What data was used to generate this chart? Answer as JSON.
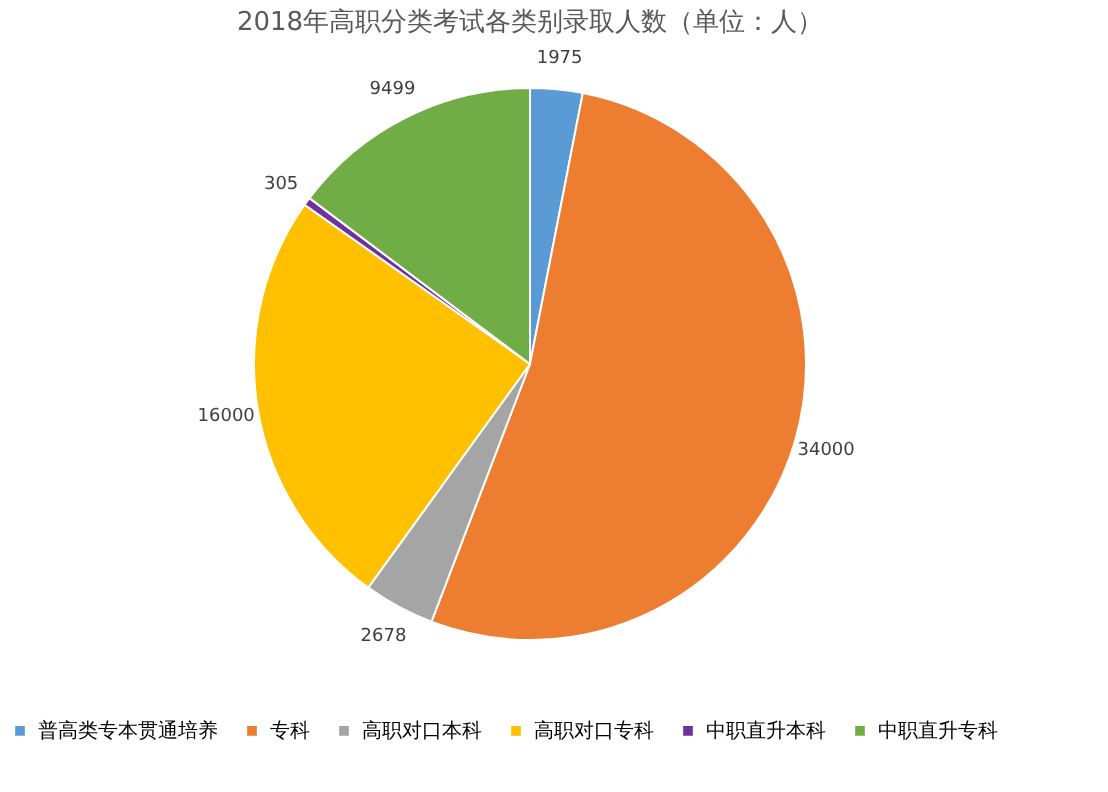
{
  "chart_data": {
    "type": "pie",
    "title": "2018年高职分类考试各类别录取人数（单位：人）",
    "categories": [
      "普高类专本贯通培养",
      "专科",
      "高职对口本科",
      "高职对口专科",
      "中职直升本科",
      "中职直升专科"
    ],
    "values": [
      1975,
      34000,
      2678,
      16000,
      305,
      9499
    ],
    "colors": [
      "#5b9bd5",
      "#ed7d31",
      "#a5a5a5",
      "#ffc000",
      "#7030a0",
      "#70ad47"
    ],
    "data_labels": true,
    "legend": "bottom"
  }
}
